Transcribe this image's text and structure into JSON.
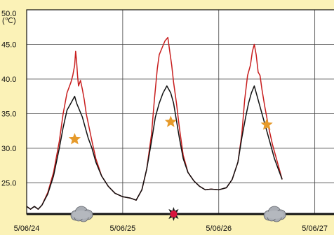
{
  "chart_data": {
    "type": "line",
    "y_unit": "(℃)",
    "ylim": [
      20.5,
      50.0
    ],
    "y_ticks": [
      {
        "value": 50.0,
        "label": "50.0"
      },
      {
        "value": 45.0,
        "label": "45.0"
      },
      {
        "value": 40.0,
        "label": "40.0"
      },
      {
        "value": 35.0,
        "label": "35.0"
      },
      {
        "value": 30.0,
        "label": "30.0"
      },
      {
        "value": 25.0,
        "label": "25.0"
      }
    ],
    "xlim": [
      0,
      3.2
    ],
    "x_ticks": [
      {
        "value": 0,
        "label": "5/06/24"
      },
      {
        "value": 1,
        "label": "5/06/25"
      },
      {
        "value": 2,
        "label": "5/06/26"
      },
      {
        "value": 3,
        "label": "5/06/27"
      }
    ],
    "grid": true,
    "colors": {
      "background": "#fbf2b7",
      "plot_background": "#ffffff",
      "red_series": "#c81e1e",
      "black_series": "#111111",
      "star": "#e69a2a"
    },
    "series": [
      {
        "color": "#c81e1e",
        "points": [
          [
            0.0,
            21.6
          ],
          [
            0.04,
            21.2
          ],
          [
            0.08,
            21.6
          ],
          [
            0.12,
            21.2
          ],
          [
            0.16,
            21.8
          ],
          [
            0.22,
            23.6
          ],
          [
            0.28,
            26.5
          ],
          [
            0.34,
            31.0
          ],
          [
            0.38,
            35.0
          ],
          [
            0.42,
            38.0
          ],
          [
            0.46,
            39.5
          ],
          [
            0.48,
            40.5
          ],
          [
            0.5,
            42.0
          ],
          [
            0.51,
            44.0
          ],
          [
            0.52,
            42.5
          ],
          [
            0.53,
            40.5
          ],
          [
            0.54,
            39.0
          ],
          [
            0.56,
            39.8
          ],
          [
            0.58,
            38.5
          ],
          [
            0.6,
            37.0
          ],
          [
            0.62,
            35.0
          ],
          [
            0.65,
            33.0
          ],
          [
            0.68,
            31.0
          ],
          [
            0.72,
            28.5
          ],
          [
            0.78,
            26.0
          ],
          [
            0.85,
            24.5
          ],
          [
            0.92,
            23.5
          ],
          [
            1.0,
            23.0
          ],
          [
            1.08,
            22.8
          ],
          [
            1.14,
            22.5
          ],
          [
            1.2,
            24.0
          ],
          [
            1.25,
            27.0
          ],
          [
            1.3,
            32.0
          ],
          [
            1.33,
            37.0
          ],
          [
            1.36,
            41.5
          ],
          [
            1.38,
            43.5
          ],
          [
            1.41,
            44.5
          ],
          [
            1.44,
            45.5
          ],
          [
            1.47,
            46.0
          ],
          [
            1.49,
            44.0
          ],
          [
            1.51,
            42.0
          ],
          [
            1.53,
            39.5
          ],
          [
            1.56,
            36.5
          ],
          [
            1.59,
            33.0
          ],
          [
            1.63,
            29.0
          ],
          [
            1.68,
            26.5
          ],
          [
            1.74,
            25.3
          ],
          [
            1.8,
            24.5
          ],
          [
            1.86,
            24.0
          ],
          [
            1.92,
            24.1
          ],
          [
            2.0,
            24.0
          ],
          [
            2.08,
            24.3
          ],
          [
            2.14,
            25.5
          ],
          [
            2.2,
            28.0
          ],
          [
            2.24,
            32.0
          ],
          [
            2.27,
            37.0
          ],
          [
            2.3,
            40.5
          ],
          [
            2.33,
            42.0
          ],
          [
            2.35,
            44.0
          ],
          [
            2.37,
            45.0
          ],
          [
            2.39,
            43.5
          ],
          [
            2.41,
            41.0
          ],
          [
            2.43,
            40.5
          ],
          [
            2.45,
            38.5
          ],
          [
            2.48,
            36.0
          ],
          [
            2.52,
            33.0
          ],
          [
            2.56,
            30.5
          ],
          [
            2.6,
            28.5
          ],
          [
            2.63,
            27.0
          ],
          [
            2.66,
            25.5
          ]
        ]
      },
      {
        "color": "#111111",
        "points": [
          [
            0.0,
            21.6
          ],
          [
            0.04,
            21.2
          ],
          [
            0.08,
            21.6
          ],
          [
            0.12,
            21.2
          ],
          [
            0.16,
            21.8
          ],
          [
            0.22,
            23.4
          ],
          [
            0.28,
            26.0
          ],
          [
            0.34,
            30.0
          ],
          [
            0.38,
            33.0
          ],
          [
            0.42,
            35.5
          ],
          [
            0.46,
            36.5
          ],
          [
            0.5,
            37.5
          ],
          [
            0.52,
            36.5
          ],
          [
            0.55,
            35.5
          ],
          [
            0.58,
            34.5
          ],
          [
            0.61,
            33.0
          ],
          [
            0.64,
            31.5
          ],
          [
            0.68,
            30.0
          ],
          [
            0.72,
            28.0
          ],
          [
            0.78,
            26.0
          ],
          [
            0.85,
            24.5
          ],
          [
            0.92,
            23.5
          ],
          [
            1.0,
            23.0
          ],
          [
            1.08,
            22.8
          ],
          [
            1.14,
            22.5
          ],
          [
            1.2,
            24.0
          ],
          [
            1.25,
            27.0
          ],
          [
            1.3,
            31.0
          ],
          [
            1.34,
            34.5
          ],
          [
            1.38,
            36.5
          ],
          [
            1.42,
            38.0
          ],
          [
            1.46,
            39.0
          ],
          [
            1.5,
            38.0
          ],
          [
            1.53,
            36.5
          ],
          [
            1.56,
            34.0
          ],
          [
            1.59,
            31.5
          ],
          [
            1.63,
            28.5
          ],
          [
            1.68,
            26.5
          ],
          [
            1.74,
            25.3
          ],
          [
            1.8,
            24.5
          ],
          [
            1.86,
            24.0
          ],
          [
            1.92,
            24.1
          ],
          [
            2.0,
            24.0
          ],
          [
            2.08,
            24.3
          ],
          [
            2.14,
            25.5
          ],
          [
            2.2,
            28.0
          ],
          [
            2.24,
            31.5
          ],
          [
            2.28,
            34.5
          ],
          [
            2.31,
            36.5
          ],
          [
            2.34,
            38.0
          ],
          [
            2.37,
            39.0
          ],
          [
            2.4,
            37.5
          ],
          [
            2.43,
            36.0
          ],
          [
            2.46,
            34.5
          ],
          [
            2.5,
            32.5
          ],
          [
            2.54,
            30.5
          ],
          [
            2.58,
            28.5
          ],
          [
            2.62,
            27.0
          ],
          [
            2.66,
            25.5
          ]
        ]
      }
    ],
    "markers": [
      {
        "shape": "star",
        "x": 0.5,
        "y": 31.3
      },
      {
        "shape": "star",
        "x": 1.5,
        "y": 33.8
      },
      {
        "shape": "star",
        "x": 2.5,
        "y": 33.4
      }
    ],
    "weather_icons": [
      {
        "kind": "cloud",
        "x": 0.57
      },
      {
        "kind": "sun",
        "x": 1.53
      },
      {
        "kind": "cloud",
        "x": 2.58
      }
    ]
  }
}
